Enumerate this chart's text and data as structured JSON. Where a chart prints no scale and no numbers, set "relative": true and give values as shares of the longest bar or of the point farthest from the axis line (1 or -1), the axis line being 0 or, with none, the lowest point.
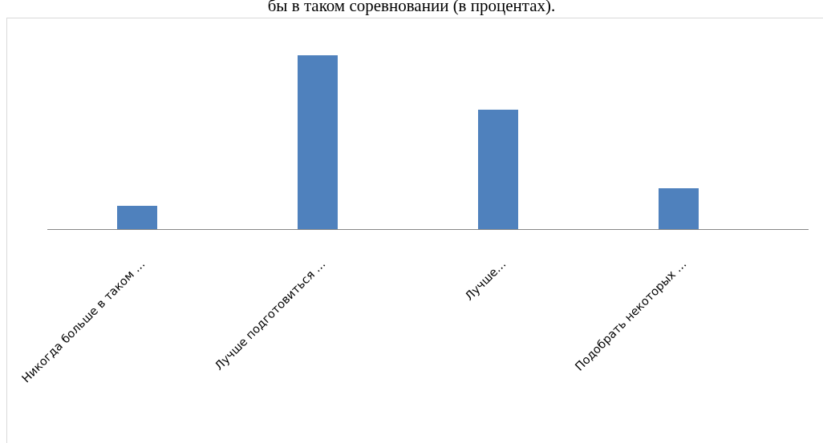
{
  "chart_data": {
    "type": "bar",
    "title": "бы в таком соревновании (в процентах).",
    "relative": true,
    "categories": [
      "Никогда больше в таком …",
      "Лучше подготовиться …",
      "Лучше…",
      "Подобрать некоторых …"
    ],
    "values": [
      0.134,
      1,
      0.687,
      0.235
    ],
    "color": "#4f81bd"
  }
}
